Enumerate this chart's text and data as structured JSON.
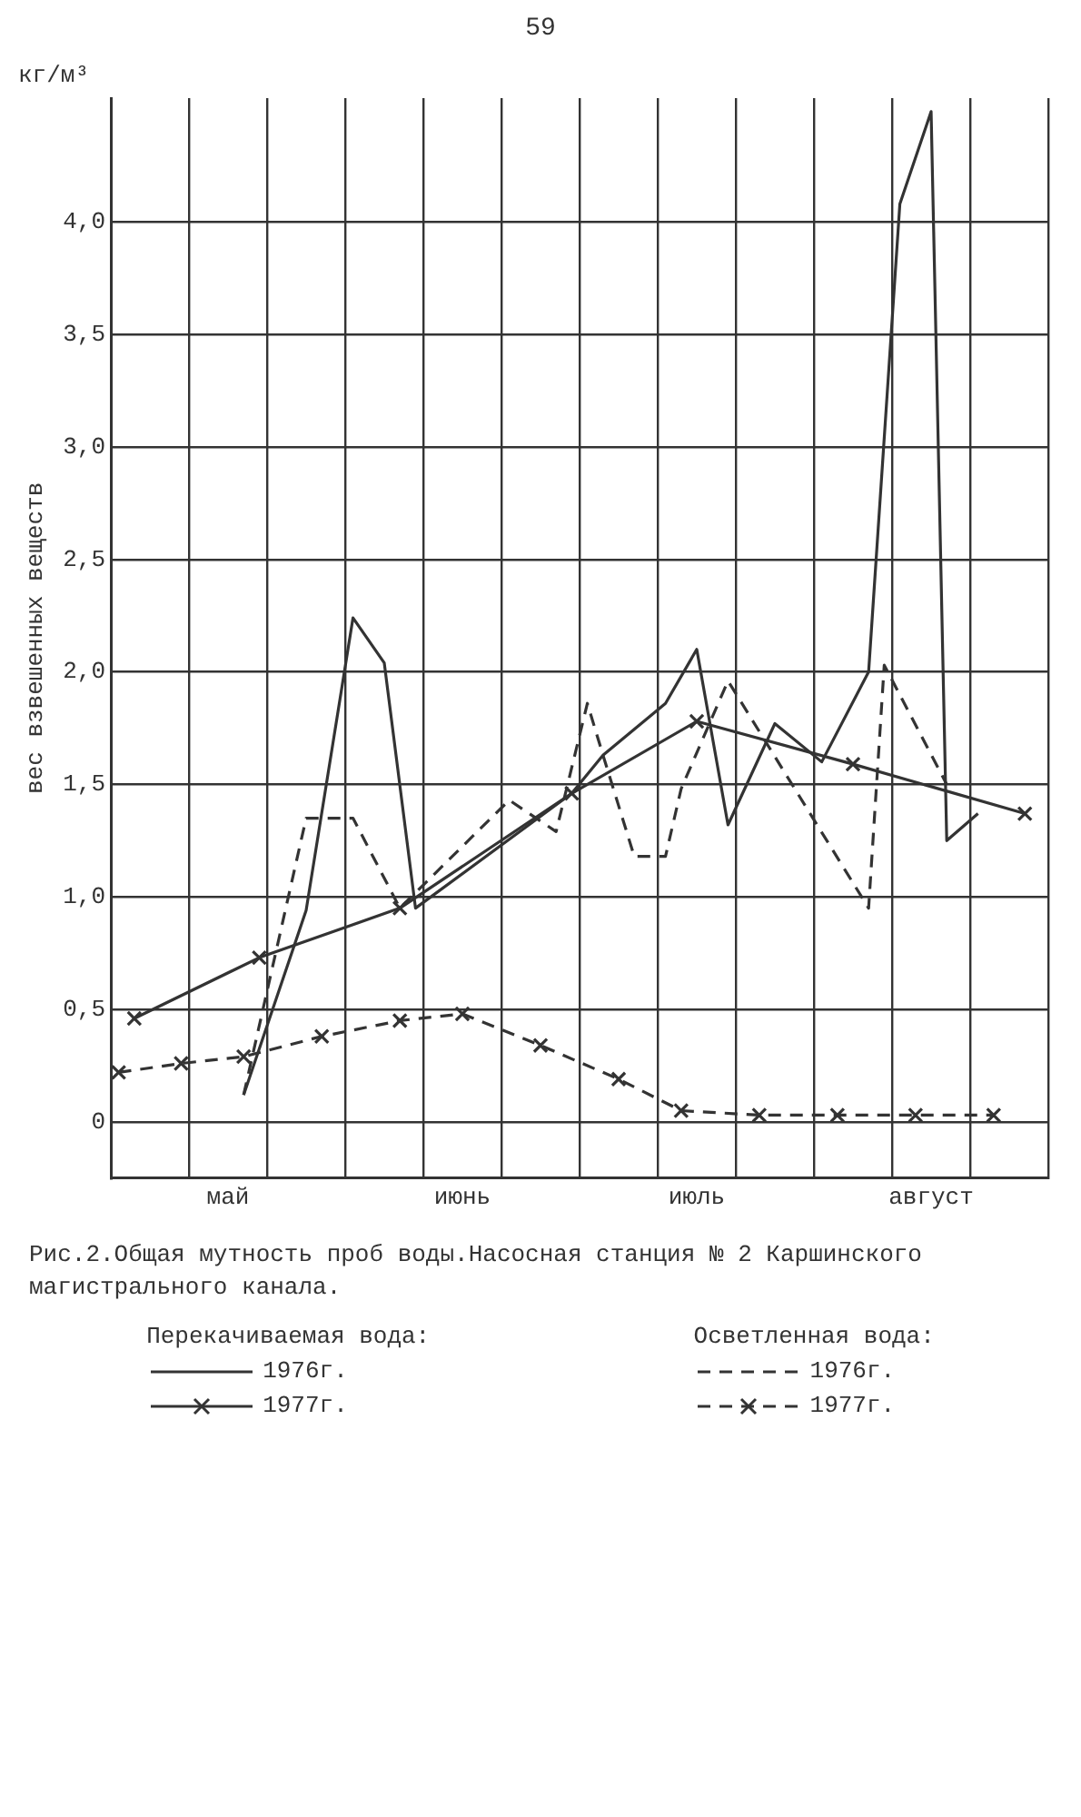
{
  "chart_data": {
    "type": "line",
    "title": "Рис.2.Общая мутность проб воды.Насосная станция № 2 Каршинского магистрального канала.",
    "ylabel": "вес взвешенных веществ",
    "annotations": [
      "59",
      "кг/м³",
      "Перекачиваемая вода:",
      "Осветленная вода:"
    ],
    "categories": [
      null,
      null,
      null,
      null,
      null,
      null,
      null,
      "май",
      null,
      null,
      null,
      null,
      null,
      null,
      null,
      null,
      null,
      null,
      null,
      null,
      null,
      null,
      "июнь",
      null,
      null,
      null,
      null,
      null,
      null,
      null,
      null,
      null,
      null,
      null,
      null,
      null,
      null,
      "июль",
      null,
      null,
      null,
      null,
      null,
      null,
      null,
      null,
      null,
      null,
      null,
      null,
      null,
      null,
      "август",
      null,
      null,
      null,
      null,
      null,
      null,
      null
    ],
    "ylim": [
      -0.25,
      4.55
    ],
    "yticks": [
      0,
      {
        "value": 0.5,
        "label": "0,5"
      },
      {
        "value": 1,
        "label": "1,0"
      },
      {
        "value": 1.5,
        "label": "1,5"
      },
      {
        "value": 2,
        "label": "2,0"
      },
      {
        "value": 2.5,
        "label": "2,5"
      },
      {
        "value": 3,
        "label": "3,0"
      },
      {
        "value": 3.5,
        "label": "3,5"
      },
      {
        "value": 4,
        "label": "4,0"
      }
    ],
    "grid": true,
    "legend": "bottom",
    "series": [
      {
        "name": "1976г.",
        "color": "#333333",
        "line_style": "solid",
        "marker": "none",
        "values": [
          null,
          null,
          null,
          null,
          null,
          null,
          null,
          null,
          0.12,
          null,
          null,
          null,
          0.94,
          null,
          null,
          2.24,
          null,
          2.04,
          null,
          0.95,
          null,
          null,
          null,
          null,
          null,
          null,
          null,
          null,
          null,
          1.46,
          null,
          1.63,
          null,
          null,
          null,
          1.86,
          null,
          2.1,
          null,
          1.32,
          null,
          null,
          1.77,
          null,
          null,
          1.6,
          null,
          null,
          2.0,
          null,
          4.08,
          null,
          4.49,
          1.25,
          null,
          1.37,
          null,
          null,
          null,
          null
        ]
      },
      {
        "name": "1977г.",
        "color": "#333333",
        "line_style": "solid",
        "marker": "cross",
        "values": [
          null,
          0.46,
          null,
          null,
          null,
          null,
          null,
          null,
          null,
          0.73,
          null,
          null,
          null,
          null,
          null,
          null,
          null,
          null,
          0.95,
          null,
          null,
          null,
          null,
          null,
          null,
          null,
          null,
          null,
          null,
          1.46,
          null,
          null,
          null,
          null,
          null,
          null,
          null,
          1.78,
          null,
          null,
          null,
          null,
          null,
          null,
          null,
          null,
          null,
          1.59,
          null,
          null,
          null,
          null,
          null,
          null,
          null,
          null,
          null,
          null,
          1.37,
          null
        ]
      },
      {
        "name": "1976г.",
        "color": "#333333",
        "line_style": "dashed",
        "marker": "none",
        "values": [
          null,
          null,
          null,
          null,
          null,
          null,
          null,
          null,
          0.12,
          null,
          null,
          null,
          1.35,
          null,
          null,
          1.35,
          null,
          null,
          0.95,
          null,
          null,
          null,
          null,
          null,
          null,
          1.43,
          null,
          null,
          1.29,
          null,
          1.86,
          1.63,
          null,
          1.18,
          null,
          1.18,
          1.48,
          null,
          null,
          1.96,
          null,
          null,
          null,
          null,
          null,
          null,
          null,
          null,
          0.95,
          2.03,
          null,
          null,
          null,
          1.5,
          null,
          null,
          null,
          null,
          null,
          null
        ]
      },
      {
        "name": "1977г.",
        "color": "#333333",
        "line_style": "dashed",
        "marker": "cross",
        "values": [
          0.22,
          null,
          null,
          null,
          0.26,
          null,
          null,
          null,
          0.29,
          null,
          null,
          null,
          null,
          0.38,
          null,
          null,
          null,
          null,
          0.45,
          null,
          null,
          null,
          0.48,
          null,
          null,
          null,
          null,
          0.34,
          null,
          null,
          null,
          null,
          0.19,
          null,
          null,
          null,
          0.05,
          null,
          null,
          null,
          null,
          0.03,
          null,
          null,
          null,
          null,
          0.03,
          null,
          null,
          null,
          null,
          0.03,
          null,
          null,
          null,
          null,
          0.03,
          null,
          null,
          null
        ]
      }
    ]
  }
}
